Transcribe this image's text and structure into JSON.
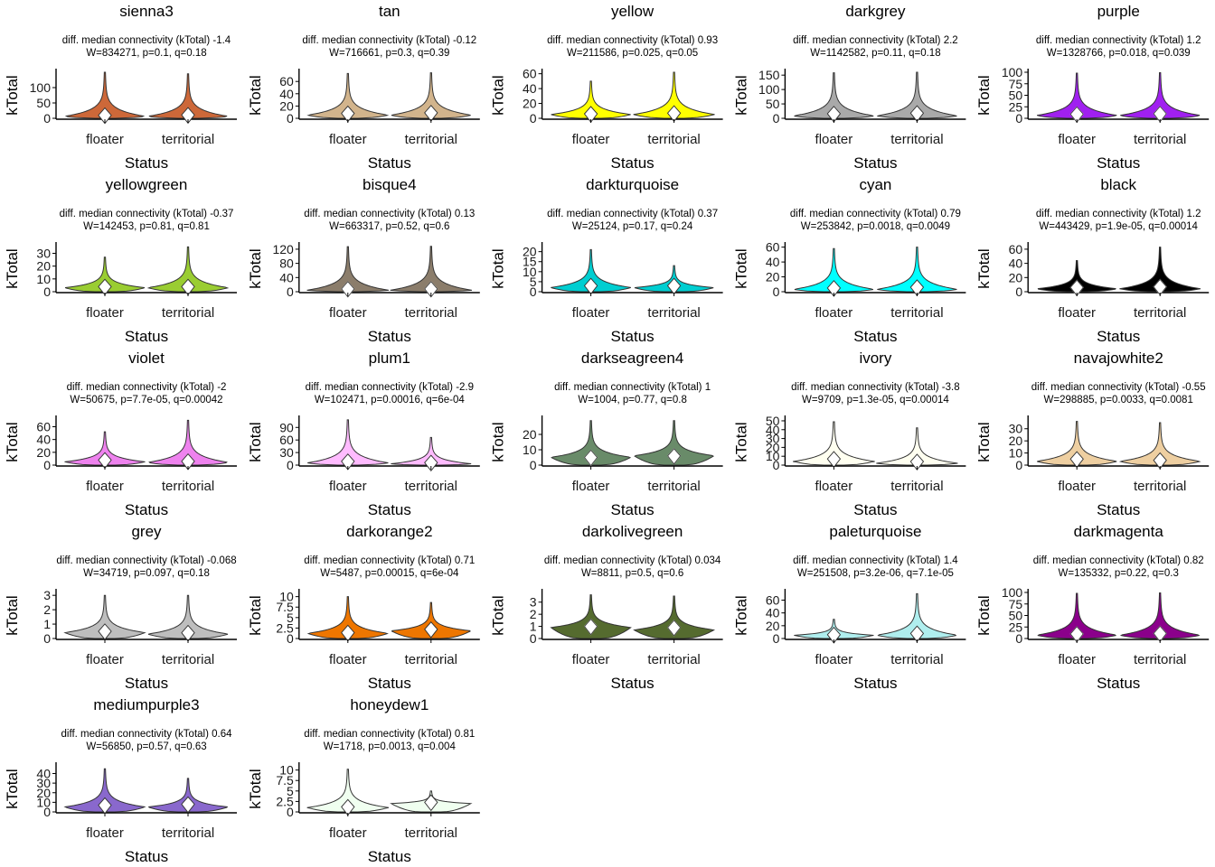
{
  "chart_data": [
    {
      "type": "violin",
      "title": "sienna3",
      "subtitle": [
        "diff. median connectivity (kTotal) -1.4",
        "W=834271, p=0.1, q=0.18"
      ],
      "color": "#CD6839",
      "categories": [
        "floater",
        "territorial"
      ],
      "xlabel": "Status",
      "ylabel": "kTotal",
      "ylim": [
        0,
        150
      ],
      "yticks": [
        0,
        50,
        100
      ],
      "y_max": [
        150,
        145
      ],
      "mode": [
        6,
        6
      ],
      "median": [
        10,
        11
      ]
    },
    {
      "type": "violin",
      "title": "tan",
      "subtitle": [
        "diff. median connectivity (kTotal) -0.12",
        "W=716661, p=0.3, q=0.39"
      ],
      "color": "#D2B48C",
      "categories": [
        "floater",
        "territorial"
      ],
      "xlabel": "Status",
      "ylabel": "kTotal",
      "ylim": [
        0,
        75
      ],
      "yticks": [
        0,
        20,
        40,
        60
      ],
      "y_max": [
        73,
        74
      ],
      "mode": [
        5,
        5
      ],
      "median": [
        8,
        9
      ]
    },
    {
      "type": "violin",
      "title": "yellow",
      "subtitle": [
        "diff. median connectivity (kTotal) 0.93",
        "W=211586, p=0.025, q=0.05"
      ],
      "color": "#FFFF00",
      "categories": [
        "floater",
        "territorial"
      ],
      "xlabel": "Status",
      "ylabel": "kTotal",
      "ylim": [
        0,
        62
      ],
      "yticks": [
        0,
        20,
        40,
        60
      ],
      "y_max": [
        50,
        62
      ],
      "mode": [
        5,
        5
      ],
      "median": [
        6,
        7
      ]
    },
    {
      "type": "violin",
      "title": "darkgrey",
      "subtitle": [
        "diff. median connectivity (kTotal) 2.2",
        "W=1142582, p=0.11, q=0.18"
      ],
      "color": "#A9A9A9",
      "categories": [
        "floater",
        "territorial"
      ],
      "xlabel": "Status",
      "ylabel": "kTotal",
      "ylim": [
        0,
        160
      ],
      "yticks": [
        0,
        50,
        100,
        150
      ],
      "y_max": [
        158,
        160
      ],
      "mode": [
        8,
        8
      ],
      "median": [
        16,
        18
      ]
    },
    {
      "type": "violin",
      "title": "purple",
      "subtitle": [
        "diff. median connectivity (kTotal) 1.2",
        "W=1328766, p=0.018, q=0.039"
      ],
      "color": "#A020F0",
      "categories": [
        "floater",
        "territorial"
      ],
      "xlabel": "Status",
      "ylabel": "kTotal",
      "ylim": [
        0,
        100
      ],
      "yticks": [
        0,
        25,
        50,
        75,
        100
      ],
      "y_max": [
        98,
        99
      ],
      "mode": [
        6,
        6
      ],
      "median": [
        9,
        10
      ]
    },
    {
      "type": "violin",
      "title": "yellowgreen",
      "subtitle": [
        "diff. median connectivity (kTotal) -0.37",
        "W=142453, p=0.81, q=0.81"
      ],
      "color": "#9ACD32",
      "categories": [
        "floater",
        "territorial"
      ],
      "xlabel": "Status",
      "ylabel": "kTotal",
      "ylim": [
        0,
        36
      ],
      "yticks": [
        0,
        10,
        20,
        30
      ],
      "y_max": [
        27,
        35
      ],
      "mode": [
        3,
        3
      ],
      "median": [
        4,
        4
      ]
    },
    {
      "type": "violin",
      "title": "bisque4",
      "subtitle": [
        "diff. median connectivity (kTotal) 0.13",
        "W=663317, p=0.52, q=0.6"
      ],
      "color": "#8B7D6B",
      "categories": [
        "floater",
        "territorial"
      ],
      "xlabel": "Status",
      "ylabel": "kTotal",
      "ylim": [
        0,
        130
      ],
      "yticks": [
        0,
        40,
        80,
        120
      ],
      "y_max": [
        127,
        128
      ],
      "mode": [
        4,
        4
      ],
      "median": [
        8,
        8
      ]
    },
    {
      "type": "violin",
      "title": "darkturquoise",
      "subtitle": [
        "diff. median connectivity (kTotal) 0.37",
        "W=25124, p=0.17, q=0.24"
      ],
      "color": "#00CED1",
      "categories": [
        "floater",
        "territorial"
      ],
      "xlabel": "Status",
      "ylabel": "kTotal",
      "ylim": [
        0,
        23
      ],
      "yticks": [
        0,
        5,
        10,
        15,
        20
      ],
      "y_max": [
        21,
        13
      ],
      "mode": [
        2,
        2
      ],
      "median": [
        3,
        3
      ]
    },
    {
      "type": "violin",
      "title": "cyan",
      "subtitle": [
        "diff. median connectivity (kTotal) 0.79",
        "W=253842, p=0.0018, q=0.0049"
      ],
      "color": "#00FFFF",
      "categories": [
        "floater",
        "territorial"
      ],
      "xlabel": "Status",
      "ylabel": "kTotal",
      "ylim": [
        0,
        62
      ],
      "yticks": [
        0,
        20,
        40,
        60
      ],
      "y_max": [
        58,
        60
      ],
      "mode": [
        3,
        3
      ],
      "median": [
        5,
        6
      ]
    },
    {
      "type": "violin",
      "title": "black",
      "subtitle": [
        "diff. median connectivity (kTotal) 1.2",
        "W=443429, p=1.9e-05, q=0.00014"
      ],
      "color": "#000000",
      "categories": [
        "floater",
        "territorial"
      ],
      "xlabel": "Status",
      "ylabel": "kTotal",
      "ylim": [
        0,
        65
      ],
      "yticks": [
        0,
        20,
        40,
        60
      ],
      "y_max": [
        44,
        63
      ],
      "mode": [
        4,
        4
      ],
      "median": [
        6,
        7
      ]
    },
    {
      "type": "violin",
      "title": "violet",
      "subtitle": [
        "diff. median connectivity (kTotal) -2",
        "W=50675, p=7.7e-05, q=0.00042"
      ],
      "color": "#EE82EE",
      "categories": [
        "floater",
        "territorial"
      ],
      "xlabel": "Status",
      "ylabel": "kTotal",
      "ylim": [
        0,
        72
      ],
      "yticks": [
        0,
        20,
        40,
        60
      ],
      "y_max": [
        52,
        70
      ],
      "mode": [
        5,
        4
      ],
      "median": [
        8,
        6
      ]
    },
    {
      "type": "violin",
      "title": "plum1",
      "subtitle": [
        "diff. median connectivity (kTotal) -2.9",
        "W=102471, p=0.00016, q=6e-04"
      ],
      "color": "#FFBBFF",
      "categories": [
        "floater",
        "territorial"
      ],
      "xlabel": "Status",
      "ylabel": "kTotal",
      "ylim": [
        0,
        110
      ],
      "yticks": [
        0,
        30,
        60,
        90
      ],
      "y_max": [
        108,
        66
      ],
      "mode": [
        5,
        3
      ],
      "median": [
        9,
        6
      ]
    },
    {
      "type": "violin",
      "title": "darkseagreen4",
      "subtitle": [
        "diff. median connectivity (kTotal) 1",
        "W=1004, p=0.77, q=0.8"
      ],
      "color": "#698B69",
      "categories": [
        "floater",
        "territorial"
      ],
      "xlabel": "Status",
      "ylabel": "kTotal",
      "ylim": [
        0,
        30
      ],
      "yticks": [
        0,
        10,
        20
      ],
      "y_max": [
        29,
        29
      ],
      "mode": [
        5,
        6
      ],
      "median": [
        5,
        6
      ]
    },
    {
      "type": "violin",
      "title": "ivory",
      "subtitle": [
        "diff. median connectivity (kTotal) -3.8",
        "W=9709, p=1.3e-05, q=0.00014"
      ],
      "color": "#FFFFF0",
      "categories": [
        "floater",
        "territorial"
      ],
      "xlabel": "Status",
      "ylabel": "kTotal",
      "ylim": [
        0,
        52
      ],
      "yticks": [
        0,
        10,
        20,
        30,
        40,
        50
      ],
      "y_max": [
        49,
        42
      ],
      "mode": [
        4,
        2
      ],
      "median": [
        7,
        4
      ]
    },
    {
      "type": "violin",
      "title": "navajowhite2",
      "subtitle": [
        "diff. median connectivity (kTotal) -0.55",
        "W=298885, p=0.0033, q=0.0081"
      ],
      "color": "#EECFA1",
      "categories": [
        "floater",
        "territorial"
      ],
      "xlabel": "Status",
      "ylabel": "kTotal",
      "ylim": [
        0,
        38
      ],
      "yticks": [
        0,
        10,
        20,
        30
      ],
      "y_max": [
        36,
        35
      ],
      "mode": [
        3,
        3
      ],
      "median": [
        5,
        4
      ]
    },
    {
      "type": "violin",
      "title": "grey",
      "subtitle": [
        "diff. median connectivity (kTotal) -0.068",
        "W=34719, p=0.097, q=0.18"
      ],
      "color": "#BEBEBE",
      "categories": [
        "floater",
        "territorial"
      ],
      "xlabel": "Status",
      "ylabel": "kTotal",
      "ylim": [
        0,
        3.2
      ],
      "yticks": [
        0,
        1,
        2,
        3
      ],
      "y_max": [
        3.0,
        3.0
      ],
      "mode": [
        0.4,
        0.3
      ],
      "median": [
        0.5,
        0.4
      ]
    },
    {
      "type": "violin",
      "title": "darkorange2",
      "subtitle": [
        "diff. median connectivity (kTotal) 0.71",
        "W=5487, p=0.00015, q=6e-04"
      ],
      "color": "#EE7600",
      "categories": [
        "floater",
        "territorial"
      ],
      "xlabel": "Status",
      "ylabel": "kTotal",
      "ylim": [
        0,
        11
      ],
      "yticks": [
        0,
        2.5,
        5,
        7.5,
        10
      ],
      "y_max": [
        10,
        8.6
      ],
      "mode": [
        1.2,
        1.8
      ],
      "median": [
        1.4,
        2.2
      ]
    },
    {
      "type": "violin",
      "title": "darkolivegreen",
      "subtitle": [
        "diff. median connectivity (kTotal) 0.034",
        "W=8811, p=0.5, q=0.6"
      ],
      "color": "#556B2F",
      "categories": [
        "floater",
        "territorial"
      ],
      "xlabel": "Status",
      "ylabel": "kTotal",
      "ylim": [
        0,
        3.8
      ],
      "yticks": [
        0,
        1,
        2,
        3
      ],
      "y_max": [
        3.6,
        3.5
      ],
      "mode": [
        0.9,
        0.7
      ],
      "median": [
        1.0,
        0.9
      ]
    },
    {
      "type": "violin",
      "title": "paleturquoise",
      "subtitle": [
        "diff. median connectivity (kTotal) 1.4",
        "W=251508, p=3.2e-06, q=7.1e-05"
      ],
      "color": "#AFEEEE",
      "categories": [
        "floater",
        "territorial"
      ],
      "xlabel": "Status",
      "ylabel": "kTotal",
      "ylim": [
        0,
        72
      ],
      "yticks": [
        0,
        20,
        40,
        60
      ],
      "y_max": [
        30,
        70
      ],
      "mode": [
        5,
        5
      ],
      "median": [
        6,
        8
      ]
    },
    {
      "type": "violin",
      "title": "darkmagenta",
      "subtitle": [
        "diff. median connectivity (kTotal) 0.82",
        "W=135332, p=0.22, q=0.3"
      ],
      "color": "#8B008B",
      "categories": [
        "floater",
        "territorial"
      ],
      "xlabel": "Status",
      "ylabel": "kTotal",
      "ylim": [
        0,
        100
      ],
      "yticks": [
        0,
        25,
        50,
        75,
        100
      ],
      "y_max": [
        98,
        99
      ],
      "mode": [
        7,
        7
      ],
      "median": [
        10,
        11
      ]
    },
    {
      "type": "violin",
      "title": "mediumpurple3",
      "subtitle": [
        "diff. median connectivity (kTotal) 0.64",
        "W=56850, p=0.57, q=0.63"
      ],
      "color": "#8968CD",
      "categories": [
        "floater",
        "territorial"
      ],
      "xlabel": "Status",
      "ylabel": "kTotal",
      "ylim": [
        0,
        48
      ],
      "yticks": [
        0,
        10,
        20,
        30,
        40
      ],
      "y_max": [
        45,
        35
      ],
      "mode": [
        5,
        5
      ],
      "median": [
        7,
        8
      ]
    },
    {
      "type": "violin",
      "title": "honeydew1",
      "subtitle": [
        "diff. median connectivity (kTotal) 0.81",
        "W=1718, p=0.0013, q=0.004"
      ],
      "color": "#F0FFF0",
      "categories": [
        "floater",
        "territorial"
      ],
      "xlabel": "Status",
      "ylabel": "kTotal",
      "ylim": [
        0,
        11
      ],
      "yticks": [
        0,
        2.5,
        5,
        7.5,
        10
      ],
      "y_max": [
        10.2,
        5
      ],
      "mode": [
        1.0,
        2.0
      ],
      "median": [
        1.2,
        2.3
      ]
    }
  ]
}
